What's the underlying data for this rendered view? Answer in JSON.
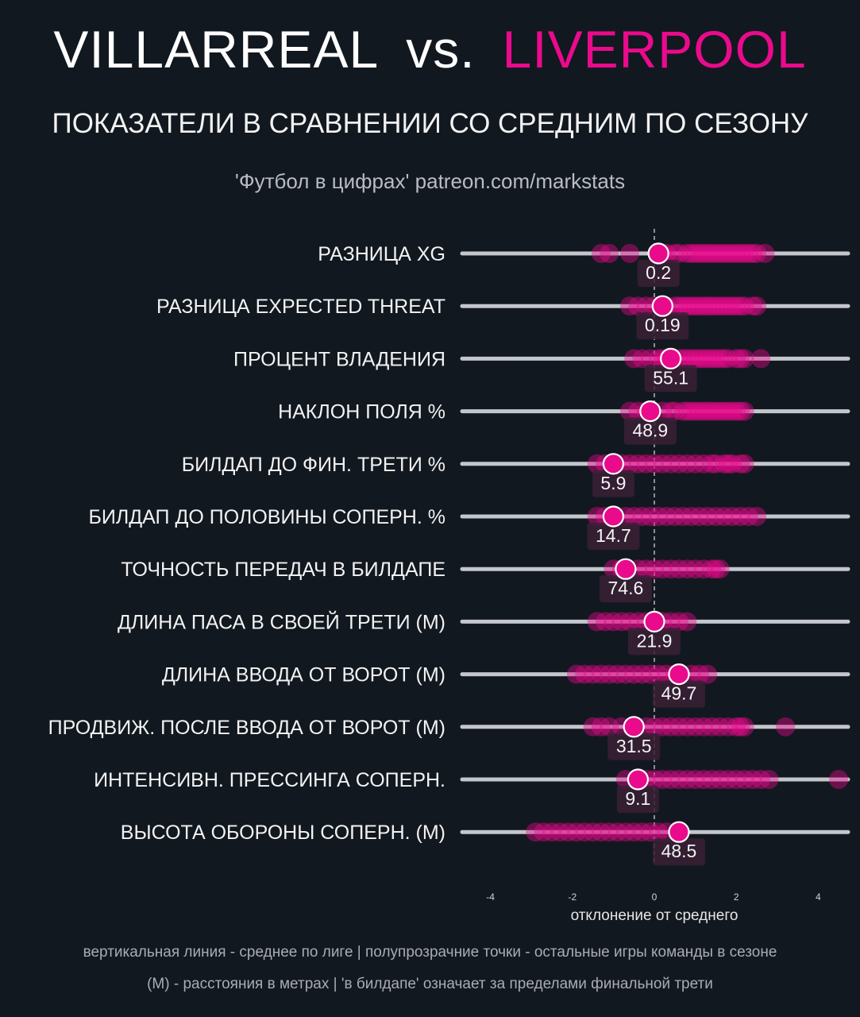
{
  "header": {
    "home_team": "VILLARREAL",
    "vs": "vs.",
    "away_team": "LIVERPOOL",
    "subtitle": "ПОКАЗАТЕЛИ В СРАВНЕНИИ СО СРЕДНИМ ПО СЕЗОНУ",
    "credit": "'Футбол в цифрах' patreon.com/markstats"
  },
  "colors": {
    "accent": "#ea0a8c",
    "background": "#121820",
    "track": "#c3c6cb",
    "label_box": "#3a2036"
  },
  "footer": {
    "note1": "вертикальная линия - среднее по лиге  |  полупрозрачние точки - остальные игры команды в сезоне",
    "note2": "(М) - расстояния в метрах | 'в билдапе' означает за пределами финальной трети"
  },
  "chart_data": {
    "type": "scatter",
    "title": "ПОКАЗАТЕЛИ В СРАВНЕНИИ СО СРЕДНИМ ПО СЕЗОНУ",
    "xlabel": "отклонение от среднего",
    "ylabel": "",
    "xlim": [
      -4.1,
      4.6
    ],
    "xticks": [
      -4,
      -2,
      0,
      2,
      4
    ],
    "reference_line": 0,
    "rows": [
      {
        "metric": "РАЗНИЦА XG",
        "value_label": "0.2",
        "match_deviation": 0.1,
        "season_games": [
          -1.3,
          -1.1,
          -0.6,
          0.2,
          0.3,
          0.5,
          0.6,
          0.8,
          0.9,
          1.0,
          1.1,
          1.2,
          1.3,
          1.4,
          1.5,
          1.6,
          1.7,
          1.8,
          1.9,
          2.0,
          2.1,
          2.2,
          2.3,
          2.4,
          2.5,
          2.7
        ]
      },
      {
        "metric": "РАЗНИЦА EXPECTED THREAT",
        "value_label": "0.19",
        "match_deviation": 0.2,
        "season_games": [
          -0.6,
          -0.4,
          -0.2,
          0.0,
          0.3,
          0.5,
          0.6,
          0.7,
          0.8,
          0.9,
          1.0,
          1.1,
          1.2,
          1.3,
          1.4,
          1.5,
          1.6,
          1.7,
          1.8,
          1.9,
          2.0,
          2.1,
          2.2,
          2.4,
          2.5
        ]
      },
      {
        "metric": "ПРОЦЕНТ ВЛАДЕНИЯ",
        "value_label": "55.1",
        "match_deviation": 0.4,
        "season_games": [
          -0.5,
          -0.3,
          -0.1,
          0.1,
          0.2,
          0.3,
          0.6,
          0.7,
          0.8,
          0.9,
          1.0,
          1.1,
          1.2,
          1.3,
          1.4,
          1.5,
          1.6,
          1.7,
          1.8,
          2.0,
          2.1,
          2.2,
          2.6
        ]
      },
      {
        "metric": "НАКЛОН ПОЛЯ %",
        "value_label": "48.9",
        "match_deviation": -0.1,
        "season_games": [
          -0.6,
          -0.4,
          -0.2,
          0.2,
          0.4,
          0.5,
          0.7,
          0.8,
          0.9,
          1.0,
          1.1,
          1.2,
          1.3,
          1.4,
          1.5,
          1.6,
          1.7,
          1.8,
          1.9,
          2.0,
          2.1,
          2.2
        ]
      },
      {
        "metric": "БИЛДАП ДО ФИН. ТРЕТИ %",
        "value_label": "5.9",
        "match_deviation": -1.0,
        "season_games": [
          -1.4,
          -1.2,
          -0.8,
          -0.6,
          -0.4,
          -0.2,
          0.0,
          0.2,
          0.4,
          0.6,
          0.8,
          1.0,
          1.2,
          1.4,
          1.5,
          1.7,
          1.8,
          1.9,
          2.1,
          2.2
        ]
      },
      {
        "metric": "БИЛДАП ДО ПОЛОВИНЫ СОПЕРН. %",
        "value_label": "14.7",
        "match_deviation": -1.0,
        "season_games": [
          -1.4,
          -1.2,
          -0.7,
          -0.5,
          -0.3,
          -0.1,
          0.1,
          0.3,
          0.5,
          0.7,
          0.9,
          1.1,
          1.3,
          1.5,
          1.7,
          1.9,
          2.1,
          2.3,
          2.5
        ]
      },
      {
        "metric": "ТОЧНОСТЬ ПЕРЕДАЧ В БИЛДАПЕ",
        "value_label": "74.6",
        "match_deviation": -0.7,
        "season_games": [
          -1.0,
          -0.8,
          -0.4,
          -0.2,
          0.0,
          0.2,
          0.4,
          0.6,
          0.8,
          1.0,
          1.2,
          1.4,
          1.5,
          1.6
        ]
      },
      {
        "metric": "ДЛИНА ПАСА В СВОЕЙ ТРЕТИ (М)",
        "value_label": "21.9",
        "match_deviation": 0.0,
        "season_games": [
          -1.4,
          -1.2,
          -1.0,
          -0.8,
          -0.6,
          -0.4,
          -0.2,
          0.2,
          0.4,
          0.6,
          0.8
        ]
      },
      {
        "metric": "ДЛИНА ВВОДА ОТ ВОРОТ (М)",
        "value_label": "49.7",
        "match_deviation": 0.6,
        "season_games": [
          -1.9,
          -1.7,
          -1.5,
          -1.3,
          -1.1,
          -0.9,
          -0.7,
          -0.5,
          -0.3,
          -0.1,
          0.1,
          0.3,
          0.5,
          0.9,
          1.1,
          1.3
        ]
      },
      {
        "metric": "ПРОДВИЖ. ПОСЛЕ ВВОДА ОТ ВОРОТ (М)",
        "value_label": "31.5",
        "match_deviation": -0.5,
        "season_games": [
          -1.5,
          -1.3,
          -1.1,
          -0.8,
          -0.2,
          0.0,
          0.2,
          0.4,
          0.6,
          0.8,
          1.0,
          1.2,
          1.4,
          1.6,
          1.8,
          2.0,
          2.1,
          2.2,
          3.2
        ]
      },
      {
        "metric": "ИНТЕНСИВН. ПРЕССИНГА СОПЕРН.",
        "value_label": "9.1",
        "match_deviation": -0.4,
        "season_games": [
          -0.7,
          -0.2,
          0.0,
          0.2,
          0.4,
          0.6,
          0.8,
          1.0,
          1.2,
          1.4,
          1.6,
          1.8,
          2.0,
          2.2,
          2.4,
          2.6,
          2.8,
          4.5
        ]
      },
      {
        "metric": "ВЫСОТА ОБОРОНЫ СОПЕРН. (М)",
        "value_label": "48.5",
        "match_deviation": 0.6,
        "season_games": [
          -2.9,
          -2.7,
          -2.5,
          -2.3,
          -2.1,
          -1.9,
          -1.7,
          -1.5,
          -1.3,
          -1.1,
          -0.9,
          -0.7,
          -0.5,
          -0.3,
          -0.1,
          0.1,
          0.3
        ]
      }
    ]
  }
}
